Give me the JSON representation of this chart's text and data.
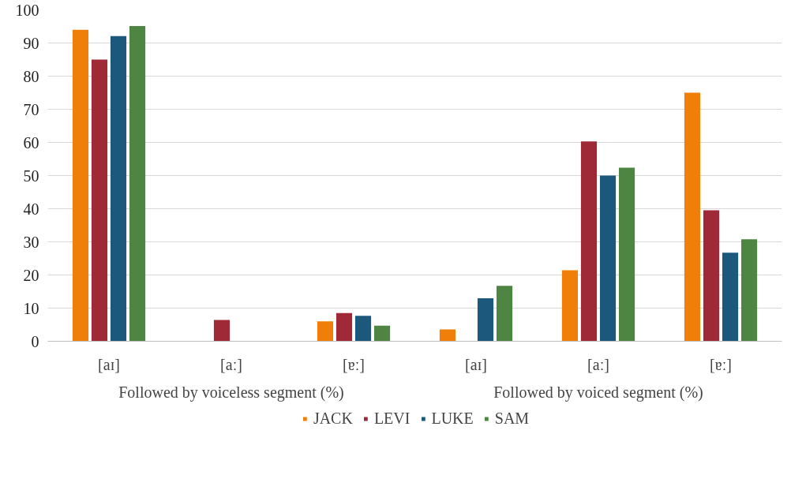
{
  "chart_data": {
    "type": "bar",
    "categories": [
      "[aɪ]",
      "[aː]",
      "[ɐː]",
      "[aɪ]",
      "[aː]",
      "[ɐː]"
    ],
    "series": [
      {
        "name": "JACK",
        "color": "#f07f09",
        "values": [
          94,
          0,
          6,
          3.6,
          21.4,
          75
        ]
      },
      {
        "name": "LEVI",
        "color": "#9f2936",
        "values": [
          85,
          6.4,
          8.5,
          0,
          60.3,
          39.5
        ]
      },
      {
        "name": "LUKE",
        "color": "#1b587c",
        "values": [
          92.1,
          0,
          7.7,
          13,
          50,
          26.7
        ]
      },
      {
        "name": "SAM",
        "color": "#4e8542",
        "values": [
          95.1,
          0,
          4.7,
          16.7,
          52.4,
          30.8
        ]
      }
    ],
    "annotations": [
      "Followed by voiceless segment (%)",
      "Followed by voiced segment (%)"
    ],
    "ylim": [
      0,
      100
    ],
    "yticks": [
      0,
      10,
      20,
      30,
      40,
      50,
      60,
      70,
      80,
      90,
      100
    ],
    "grid": "y",
    "legend": "bottom"
  }
}
